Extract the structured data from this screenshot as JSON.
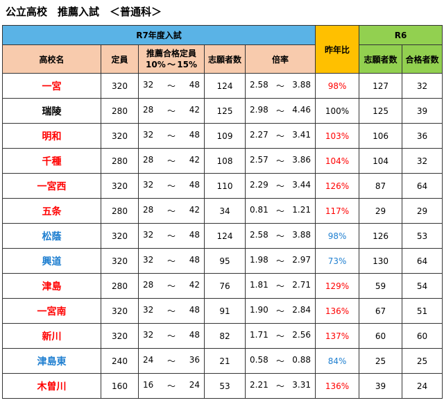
{
  "title": "公立高校　推薦入試　＜普通科＞",
  "header": {
    "r7": "R7年度入試",
    "ratio": "昨年比",
    "r6": "R6",
    "school": "高校名",
    "capacity": "定員",
    "quota": "推薦合格定員",
    "quota_low": "10%",
    "quota_sep": "～",
    "quota_high": "15%",
    "applicants": "志願者数",
    "rate": "倍率",
    "r6_applicants": "志願者数",
    "r6_passed": "合格者数"
  },
  "colors": {
    "red": "#ff0000",
    "blue": "#1f7fd0",
    "black": "#000000"
  },
  "rows": [
    {
      "school": "一宮",
      "school_color": "red",
      "capacity": "320",
      "q_low": "32",
      "q_sep": "～",
      "q_high": "48",
      "applicants": "124",
      "r_low": "2.58",
      "r_sep": "～",
      "r_high": "3.88",
      "ratio": "98%",
      "ratio_color": "red",
      "r6_app": "127",
      "r6_pass": "32"
    },
    {
      "school": "瑞陵",
      "school_color": "black",
      "capacity": "280",
      "q_low": "28",
      "q_sep": "～",
      "q_high": "42",
      "applicants": "125",
      "r_low": "2.98",
      "r_sep": "～",
      "r_high": "4.46",
      "ratio": "100%",
      "ratio_color": "black",
      "r6_app": "125",
      "r6_pass": "39"
    },
    {
      "school": "明和",
      "school_color": "red",
      "capacity": "320",
      "q_low": "32",
      "q_sep": "～",
      "q_high": "48",
      "applicants": "109",
      "r_low": "2.27",
      "r_sep": "～",
      "r_high": "3.41",
      "ratio": "103%",
      "ratio_color": "red",
      "r6_app": "106",
      "r6_pass": "36"
    },
    {
      "school": "千種",
      "school_color": "red",
      "capacity": "280",
      "q_low": "28",
      "q_sep": "～",
      "q_high": "42",
      "applicants": "108",
      "r_low": "2.57",
      "r_sep": "～",
      "r_high": "3.86",
      "ratio": "104%",
      "ratio_color": "red",
      "r6_app": "104",
      "r6_pass": "32"
    },
    {
      "school": "一宮西",
      "school_color": "red",
      "capacity": "320",
      "q_low": "32",
      "q_sep": "～",
      "q_high": "48",
      "applicants": "110",
      "r_low": "2.29",
      "r_sep": "～",
      "r_high": "3.44",
      "ratio": "126%",
      "ratio_color": "red",
      "r6_app": "87",
      "r6_pass": "64"
    },
    {
      "school": "五条",
      "school_color": "red",
      "capacity": "280",
      "q_low": "28",
      "q_sep": "～",
      "q_high": "42",
      "applicants": "34",
      "r_low": "0.81",
      "r_sep": "～",
      "r_high": "1.21",
      "ratio": "117%",
      "ratio_color": "red",
      "r6_app": "29",
      "r6_pass": "29"
    },
    {
      "school": "松蔭",
      "school_color": "blue",
      "capacity": "320",
      "q_low": "32",
      "q_sep": "～",
      "q_high": "48",
      "applicants": "124",
      "r_low": "2.58",
      "r_sep": "～",
      "r_high": "3.88",
      "ratio": "98%",
      "ratio_color": "blue",
      "r6_app": "126",
      "r6_pass": "53"
    },
    {
      "school": "興道",
      "school_color": "blue",
      "capacity": "320",
      "q_low": "32",
      "q_sep": "～",
      "q_high": "48",
      "applicants": "95",
      "r_low": "1.98",
      "r_sep": "～",
      "r_high": "2.97",
      "ratio": "73%",
      "ratio_color": "blue",
      "r6_app": "130",
      "r6_pass": "64"
    },
    {
      "school": "津島",
      "school_color": "red",
      "capacity": "280",
      "q_low": "28",
      "q_sep": "～",
      "q_high": "42",
      "applicants": "76",
      "r_low": "1.81",
      "r_sep": "～",
      "r_high": "2.71",
      "ratio": "129%",
      "ratio_color": "red",
      "r6_app": "59",
      "r6_pass": "54"
    },
    {
      "school": "一宮南",
      "school_color": "red",
      "capacity": "320",
      "q_low": "32",
      "q_sep": "～",
      "q_high": "48",
      "applicants": "91",
      "r_low": "1.90",
      "r_sep": "～",
      "r_high": "2.84",
      "ratio": "136%",
      "ratio_color": "red",
      "r6_app": "67",
      "r6_pass": "51"
    },
    {
      "school": "新川",
      "school_color": "red",
      "capacity": "320",
      "q_low": "32",
      "q_sep": "～",
      "q_high": "48",
      "applicants": "82",
      "r_low": "1.71",
      "r_sep": "～",
      "r_high": "2.56",
      "ratio": "137%",
      "ratio_color": "red",
      "r6_app": "60",
      "r6_pass": "60"
    },
    {
      "school": "津島東",
      "school_color": "blue",
      "capacity": "240",
      "q_low": "24",
      "q_sep": "～",
      "q_high": "36",
      "applicants": "21",
      "r_low": "0.58",
      "r_sep": "～",
      "r_high": "0.88",
      "ratio": "84%",
      "ratio_color": "blue",
      "r6_app": "25",
      "r6_pass": "25"
    },
    {
      "school": "木曽川",
      "school_color": "red",
      "capacity": "160",
      "q_low": "16",
      "q_sep": "～",
      "q_high": "24",
      "applicants": "53",
      "r_low": "2.21",
      "r_sep": "～",
      "r_high": "3.31",
      "ratio": "136%",
      "ratio_color": "red",
      "r6_app": "39",
      "r6_pass": "24"
    }
  ]
}
